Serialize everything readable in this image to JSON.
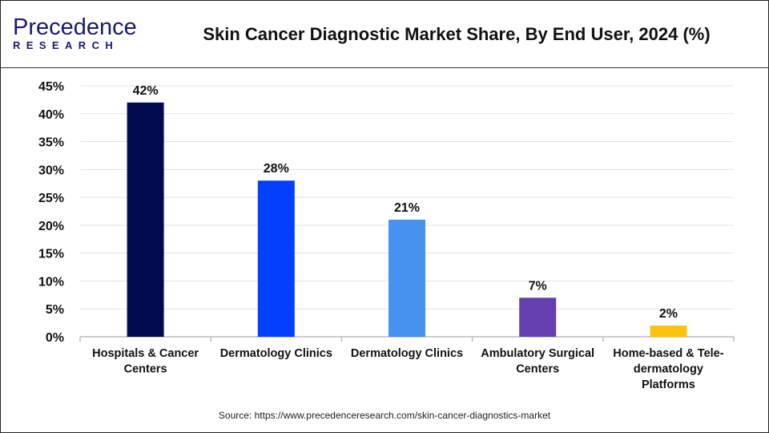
{
  "logo": {
    "text": "Precedence",
    "subtext": "RESEARCH"
  },
  "header": {
    "title": "Skin Cancer Diagnostic Market Share, By End User, 2024 (%)"
  },
  "source": "Source: https://www.precedenceresearch.com/skin-cancer-diagnostics-market",
  "chart_data": {
    "type": "bar",
    "title": "Skin Cancer Diagnostic Market Share, By End User, 2024 (%)",
    "categories": [
      [
        "Hospitals & Cancer",
        "Centers"
      ],
      [
        "Dermatology Clinics"
      ],
      [
        "Dermatology Clinics"
      ],
      [
        "Ambulatory Surgical",
        "Centers"
      ],
      [
        "Home-based & Tele-",
        "dermatology",
        "Platforms"
      ]
    ],
    "values": [
      42,
      28,
      21,
      7,
      2
    ],
    "data_labels": [
      "42%",
      "28%",
      "21%",
      "7%",
      "2%"
    ],
    "colors": [
      "#020a4f",
      "#0340fb",
      "#4692ee",
      "#643fad",
      "#fdc20f"
    ],
    "ylim": [
      0,
      45
    ],
    "yticks": [
      "0%",
      "5%",
      "10%",
      "15%",
      "20%",
      "25%",
      "30%",
      "35%",
      "40%",
      "45%"
    ],
    "grid": true,
    "xlabel": "",
    "ylabel": ""
  }
}
